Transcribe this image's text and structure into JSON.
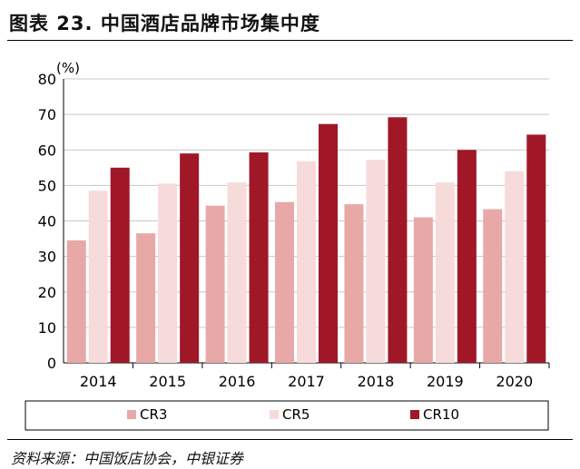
{
  "header": {
    "title": "图表 23. 中国酒店品牌市场集中度"
  },
  "footer": {
    "source": "资料来源：中国饭店协会，中银证券"
  },
  "chart_data": {
    "type": "bar",
    "unit_label": "(%)",
    "categories": [
      "2014",
      "2015",
      "2016",
      "2017",
      "2018",
      "2019",
      "2020"
    ],
    "series": [
      {
        "name": "CR3",
        "color": "#e8a8a8",
        "values": [
          34.5,
          36.5,
          44.3,
          45.3,
          44.7,
          41.0,
          43.3
        ]
      },
      {
        "name": "CR5",
        "color": "#f7dada",
        "values": [
          48.5,
          50.5,
          50.8,
          56.8,
          57.2,
          50.8,
          54.0
        ]
      },
      {
        "name": "CR10",
        "color": "#a01827",
        "values": [
          55.0,
          59.0,
          59.3,
          67.3,
          69.2,
          60.0,
          64.3
        ]
      }
    ],
    "ylim": [
      0,
      80
    ],
    "yticks": [
      0,
      10,
      20,
      30,
      40,
      50,
      60,
      70,
      80
    ],
    "grid": true,
    "legend_position": "bottom"
  }
}
